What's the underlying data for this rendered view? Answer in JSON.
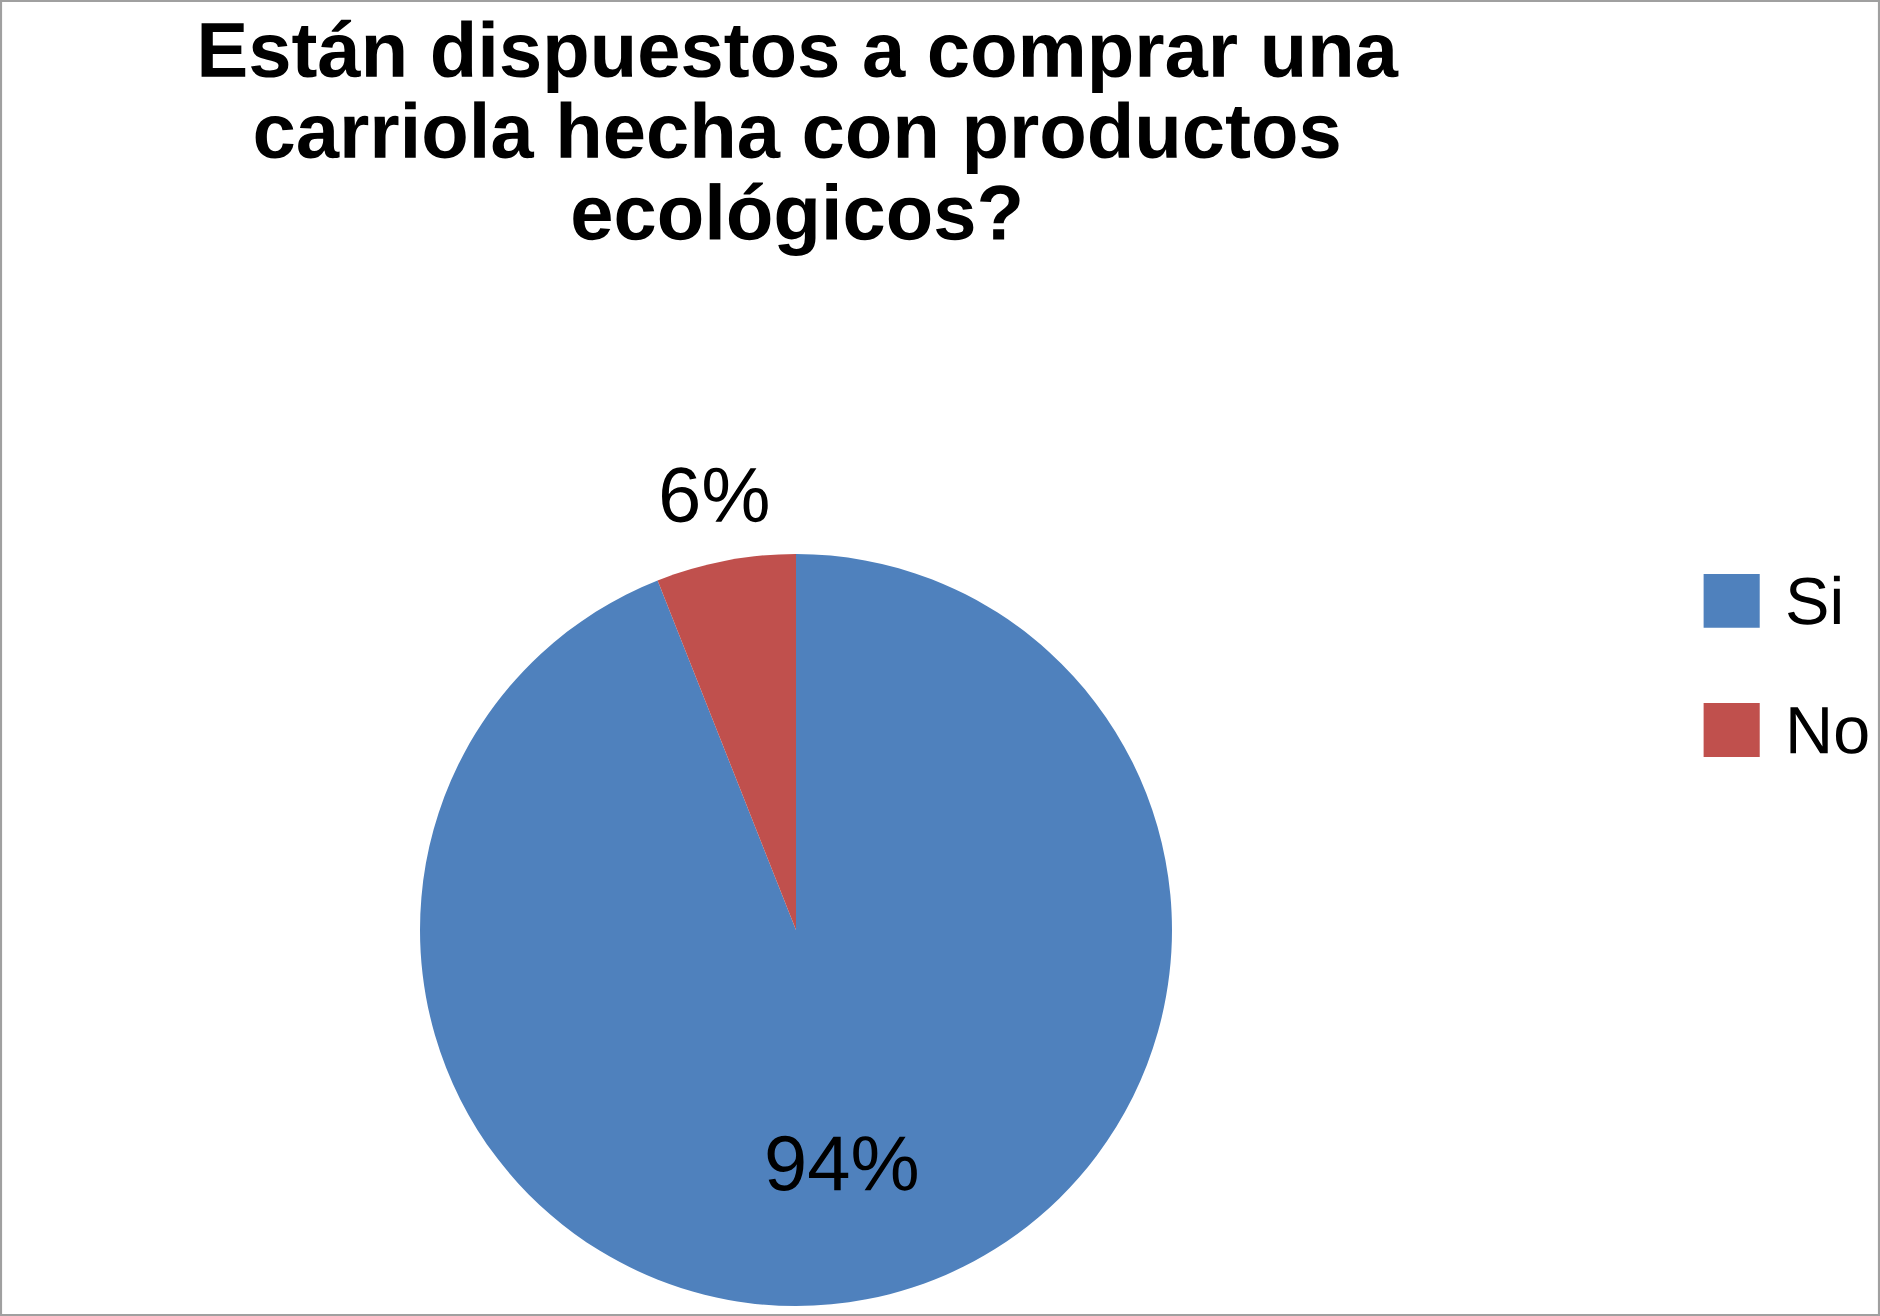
{
  "chart_data": {
    "type": "pie",
    "title": "Están dispuestos a comprar una\ncarriola hecha con productos\necológicos?",
    "categories": [
      "Si",
      "No"
    ],
    "values": [
      94,
      6
    ],
    "colors": [
      "#4f81bd",
      "#c0504d"
    ],
    "value_labels": [
      "94%",
      "6%"
    ],
    "legend": "right"
  }
}
